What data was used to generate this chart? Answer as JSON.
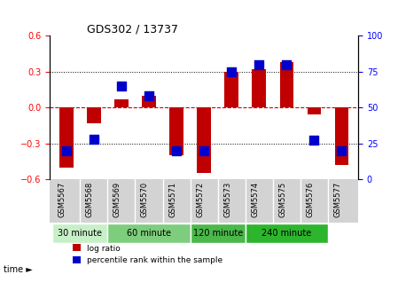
{
  "title": "GDS302 / 13737",
  "samples": [
    "GSM5567",
    "GSM5568",
    "GSM5569",
    "GSM5570",
    "GSM5571",
    "GSM5572",
    "GSM5573",
    "GSM5574",
    "GSM5575",
    "GSM5576",
    "GSM5577"
  ],
  "log_ratio": [
    -0.5,
    -0.13,
    0.07,
    0.1,
    -0.4,
    -0.55,
    0.3,
    0.32,
    0.38,
    -0.06,
    -0.48
  ],
  "percentile": [
    20,
    28,
    65,
    58,
    20,
    20,
    75,
    80,
    80,
    27,
    20
  ],
  "groups": [
    {
      "label": "30 minute",
      "start": 0,
      "end": 2,
      "color": "#c8f0c8"
    },
    {
      "label": "60 minute",
      "start": 2,
      "end": 5,
      "color": "#90ee90"
    },
    {
      "label": "120 minute",
      "start": 5,
      "end": 7,
      "color": "#50c050"
    },
    {
      "label": "240 minute",
      "start": 7,
      "end": 10,
      "color": "#32cd32"
    }
  ],
  "ylim": [
    -0.6,
    0.6
  ],
  "yticks_left": [
    -0.6,
    -0.3,
    0.0,
    0.3,
    0.6
  ],
  "yticks_right": [
    0,
    25,
    50,
    75,
    100
  ],
  "bar_color": "#c00000",
  "dot_color": "#0000cc",
  "bar_width": 0.5,
  "dot_size": 60,
  "zero_line_color": "#cc0000",
  "grid_color": "#000000",
  "bg_plot": "#ffffff",
  "bg_tick": "#d3d3d3",
  "group_colors": [
    "#c8f0c8",
    "#7dcd7d",
    "#4ab84a",
    "#2db52d"
  ],
  "legend_bar_label": "log ratio",
  "legend_dot_label": "percentile rank within the sample"
}
